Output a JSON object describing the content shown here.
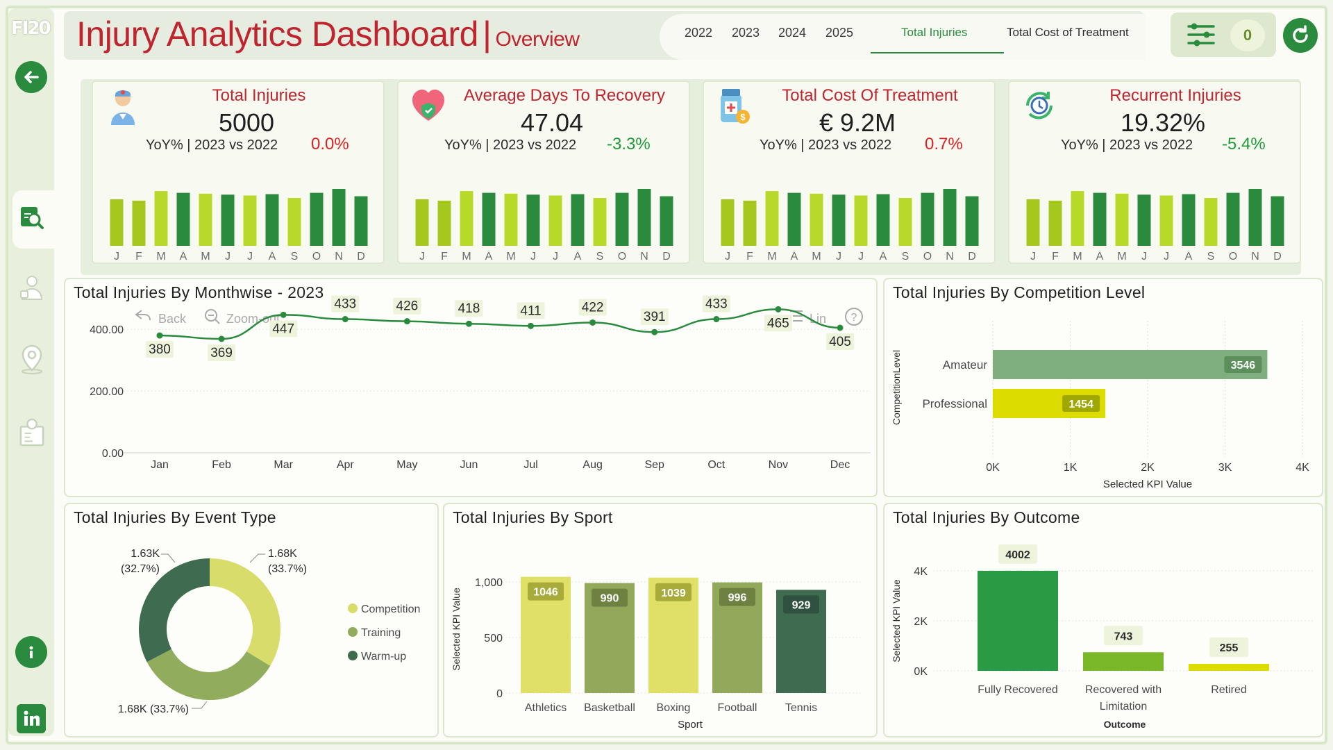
{
  "app": {
    "logo_text": "FI20",
    "title": "Injury Analytics Dashboard",
    "title_separator": "|",
    "subtitle": "Overview"
  },
  "header": {
    "years": [
      "2022",
      "2023",
      "2024",
      "2025"
    ],
    "tabs": [
      {
        "label": "Total Injuries",
        "active": true
      },
      {
        "label": "Total Cost of Treatment",
        "active": false
      }
    ],
    "filter_count": "0"
  },
  "colors": {
    "accent_red": "#c0252f",
    "dark_green": "#2a8a3e",
    "lime": "#a6c81e",
    "positive": "#1e9a3a",
    "negative": "#e02020"
  },
  "kpis": [
    {
      "title": "Total Injuries",
      "value": "5000",
      "yoy_label": "YoY% | 2023 vs 2022",
      "delta": "0.0%",
      "delta_sign": "neg",
      "icon": "doctor-icon"
    },
    {
      "title": "Average Days To Recovery",
      "value": "47.04",
      "yoy_label": "YoY% | 2023 vs 2022",
      "delta": "-3.3%",
      "delta_sign": "pos",
      "icon": "heart-shield-icon"
    },
    {
      "title": "Total Cost Of Treatment",
      "value": "€ 9.2M",
      "yoy_label": "YoY% | 2023 vs 2022",
      "delta": "0.7%",
      "delta_sign": "neg",
      "icon": "medicine-coin-icon"
    },
    {
      "title": "Recurrent Injuries",
      "value": "19.32%",
      "yoy_label": "YoY% | 2023 vs 2022",
      "delta": "-5.4%",
      "delta_sign": "pos",
      "icon": "clock-recurrence-icon"
    }
  ],
  "spark_months": [
    "J",
    "F",
    "M",
    "A",
    "M",
    "J",
    "J",
    "A",
    "S",
    "O",
    "N",
    "D"
  ],
  "spark_values": [
    380,
    369,
    447,
    433,
    426,
    418,
    411,
    422,
    391,
    433,
    465,
    405
  ],
  "monthwise": {
    "title": "Total Injuries By Monthwise - 2023",
    "toolbar": {
      "back": "Back",
      "zoom_out": "Zoom-out",
      "lin": "Lin",
      "help": "?"
    }
  },
  "competition": {
    "title": "Total Injuries By Competition Level"
  },
  "event_type": {
    "title": "Total Injuries By Event Type"
  },
  "sport": {
    "title": "Total Injuries By Sport"
  },
  "outcome": {
    "title": "Total Injuries By Outcome"
  },
  "chart_data": [
    {
      "type": "line",
      "title": "Total Injuries By Monthwise - 2023",
      "categories": [
        "Jan",
        "Feb",
        "Mar",
        "Apr",
        "May",
        "Jun",
        "Jul",
        "Aug",
        "Sep",
        "Oct",
        "Nov",
        "Dec"
      ],
      "values": [
        380,
        369,
        447,
        433,
        426,
        418,
        411,
        422,
        391,
        433,
        465,
        405
      ],
      "ylim": [
        0,
        450
      ],
      "yticks": [
        "0.00",
        "200.00",
        "400.00"
      ],
      "xlabel": "",
      "ylabel": ""
    },
    {
      "type": "bar",
      "orientation": "horizontal",
      "title": "Total Injuries By Competition Level",
      "categories": [
        "Amateur",
        "Professional"
      ],
      "values": [
        3546,
        1454
      ],
      "xlim": [
        0,
        4000
      ],
      "xticks": [
        "0K",
        "1K",
        "2K",
        "3K",
        "4K"
      ],
      "xlabel": "Selected KPI Value",
      "ylabel": "CompetitionLevel"
    },
    {
      "type": "pie",
      "variant": "donut",
      "title": "Total Injuries By Event Type",
      "categories": [
        "Competition",
        "Training",
        "Warm-up"
      ],
      "values": [
        1680,
        1680,
        1630
      ],
      "labels": [
        "1.68K (33.7%)",
        "1.68K (33.7%)",
        "1.63K (32.7%)"
      ],
      "label_values": [
        "1.68K",
        "1.68K",
        "1.63K"
      ],
      "label_pcts": [
        "(33.7%)",
        "(33.7%)",
        "(32.7%)"
      ]
    },
    {
      "type": "bar",
      "title": "Total Injuries By Sport",
      "categories": [
        "Athletics",
        "Basketball",
        "Boxing",
        "Football",
        "Tennis"
      ],
      "values": [
        1046,
        990,
        1039,
        996,
        929
      ],
      "ylim": [
        0,
        1050
      ],
      "yticks": [
        "0",
        "500",
        "1,000"
      ],
      "xlabel": "Sport",
      "ylabel": "Selected KPI Value"
    },
    {
      "type": "bar",
      "title": "Total Injuries By Outcome",
      "categories": [
        "Fully Recovered",
        "Recovered with Limitation",
        "Retired"
      ],
      "category_lines": [
        [
          "Fully Recovered"
        ],
        [
          "Recovered with",
          "Limitation"
        ],
        [
          "Retired"
        ]
      ],
      "values": [
        4002,
        743,
        255
      ],
      "ylim": [
        0,
        4000
      ],
      "yticks": [
        "0K",
        "2K",
        "4K"
      ],
      "xlabel": "Outcome",
      "ylabel": "Selected KPI Value"
    }
  ]
}
